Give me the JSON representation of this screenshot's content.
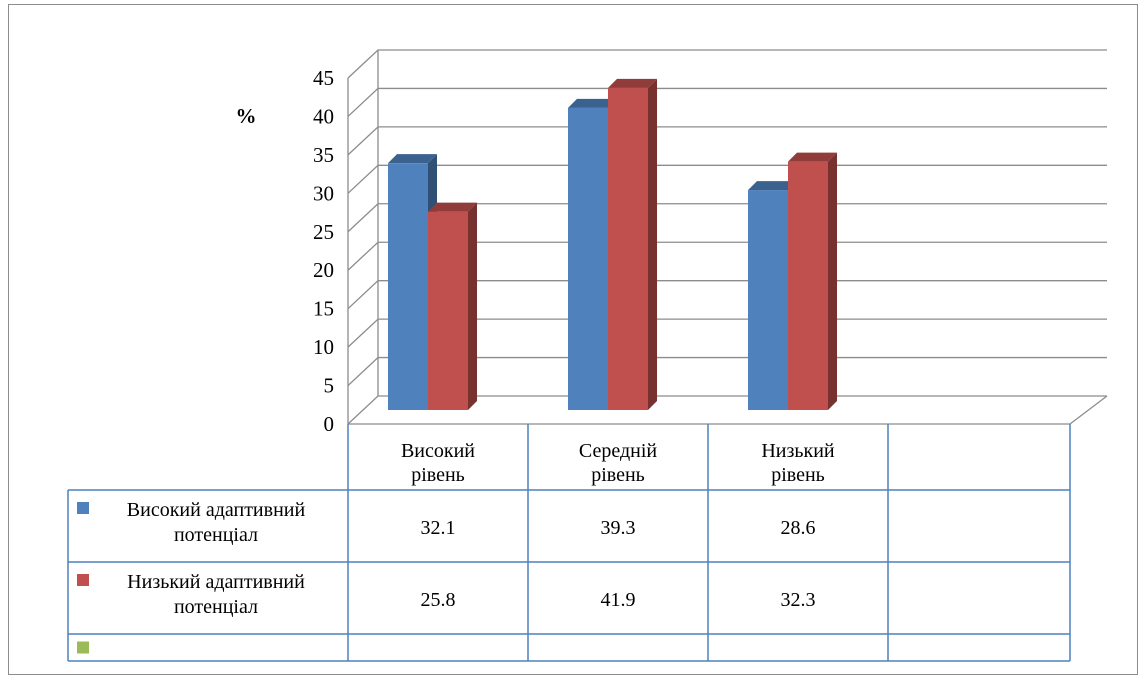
{
  "chart_data": {
    "type": "bar",
    "ylabel": "%",
    "ylim": [
      0,
      45
    ],
    "yticks": [
      0,
      5,
      10,
      15,
      20,
      25,
      30,
      35,
      40,
      45
    ],
    "grid": true,
    "three_d": true,
    "data_table": true,
    "categories": [
      [
        "Високий",
        "рівень"
      ],
      [
        "Середній",
        "рівень"
      ],
      [
        "Низький",
        "рівень"
      ],
      [
        "",
        ""
      ]
    ],
    "series": [
      {
        "name": [
          "Високий адаптивний",
          "потенціал"
        ],
        "color": "#4f81bd",
        "values": [
          32.1,
          39.3,
          28.6,
          null
        ]
      },
      {
        "name": [
          "Низький адаптивний",
          "потенціал"
        ],
        "color": "#c0504d",
        "values": [
          25.8,
          41.9,
          32.3,
          null
        ]
      },
      {
        "name": [
          "",
          ""
        ],
        "color": "#9bbb59",
        "values": [
          null,
          null,
          null,
          null
        ]
      }
    ]
  }
}
